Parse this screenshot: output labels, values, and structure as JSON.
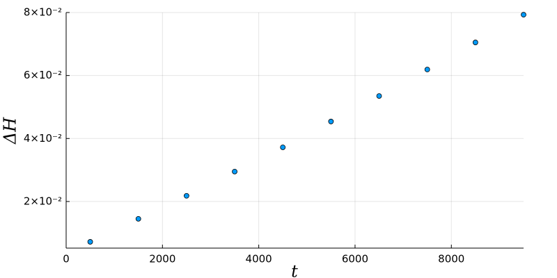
{
  "chart_data": {
    "type": "scatter",
    "x_label": "t",
    "y_label": "ΔH",
    "x": [
      500,
      1500,
      2500,
      3500,
      4500,
      5500,
      6500,
      7500,
      8500,
      9500
    ],
    "series": [
      {
        "color": "#009af9",
        "values": [
          0.0072,
          0.0145,
          0.0218,
          0.0295,
          0.0372,
          0.0454,
          0.0535,
          0.0619,
          0.0705,
          0.0793
        ]
      }
    ],
    "xlim": [
      0,
      9500
    ],
    "ylim": [
      0.0052,
      0.08
    ],
    "xticks": [
      0,
      2000,
      4000,
      6000,
      8000
    ],
    "yticks": [
      {
        "value": 0.02,
        "label": "2×10⁻²"
      },
      {
        "value": 0.04,
        "label": "4×10⁻²"
      },
      {
        "value": 0.06,
        "label": "6×10⁻²"
      },
      {
        "value": 0.08,
        "label": "8×10⁻²"
      }
    ],
    "grid": true
  }
}
